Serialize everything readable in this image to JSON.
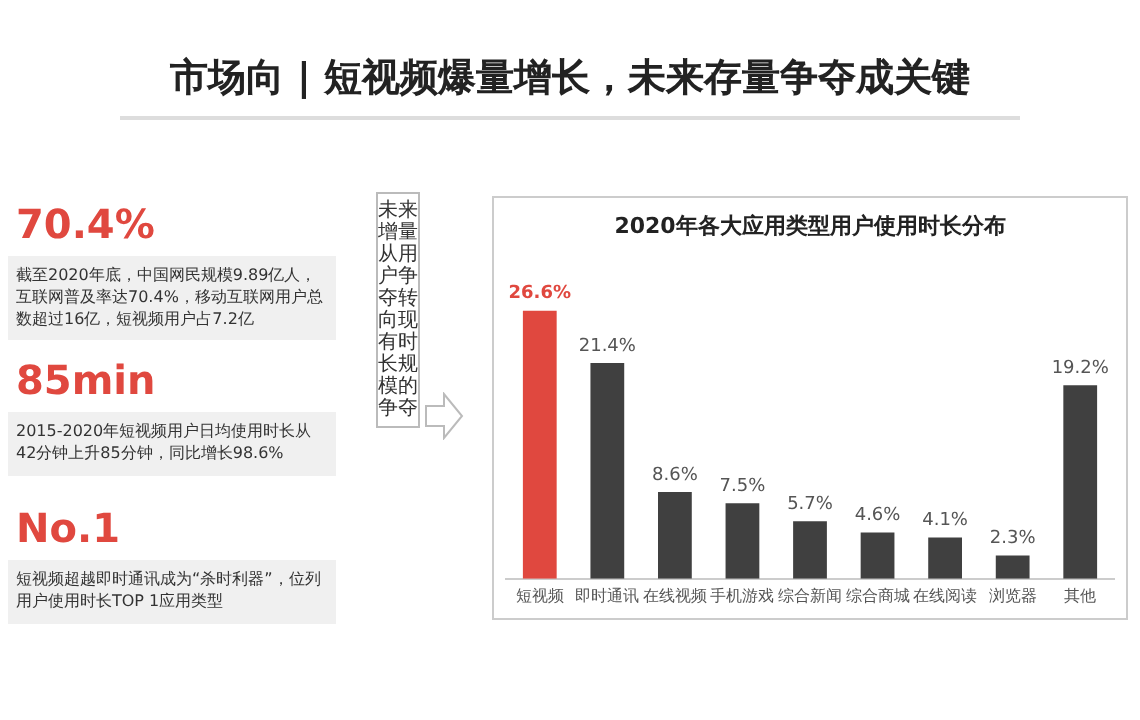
{
  "chart_data": {
    "type": "bar",
    "title": "市场向 | 短视频爆量增长，未来存量争夺成关键",
    "subtitle": "2020年各大应用类型用户使用时长分布",
    "categories": [
      "短视频",
      "即时通讯",
      "在线视频",
      "手机游戏",
      "综合新闻",
      "综合商城",
      "在线阅读",
      "浏览器",
      "其他"
    ],
    "values": [
      26.6,
      21.4,
      8.6,
      7.5,
      5.7,
      4.6,
      4.1,
      2.3,
      19.2
    ],
    "colors": [
      "#e0483f",
      "#404040",
      "#404040",
      "#404040",
      "#404040",
      "#404040",
      "#404040",
      "#404040",
      "#404040"
    ],
    "value_labels": [
      "26.6%",
      "21.4%",
      "8.6%",
      "7.5%",
      "5.7%",
      "4.6%",
      "4.1%",
      "2.3%",
      "19.2%"
    ],
    "grid": false,
    "legend": false,
    "annotations": [
      "70.4%",
      "截至2020年底，中国网民规模9.89亿人，互联网普及率达70.4%，移动互联网用户总数超过16亿，短视频用户占7.2亿",
      "85min",
      "2015-2020年短视频用户日均使用时长从42分钟上升85分钟，同比增长98.6%",
      "No.1",
      "短视频超越即时通讯成为“杀时利器”，位列用户使用时长TOP 1应用类型",
      "未来增量从用户争夺转向现有时长规模的争夺"
    ]
  }
}
